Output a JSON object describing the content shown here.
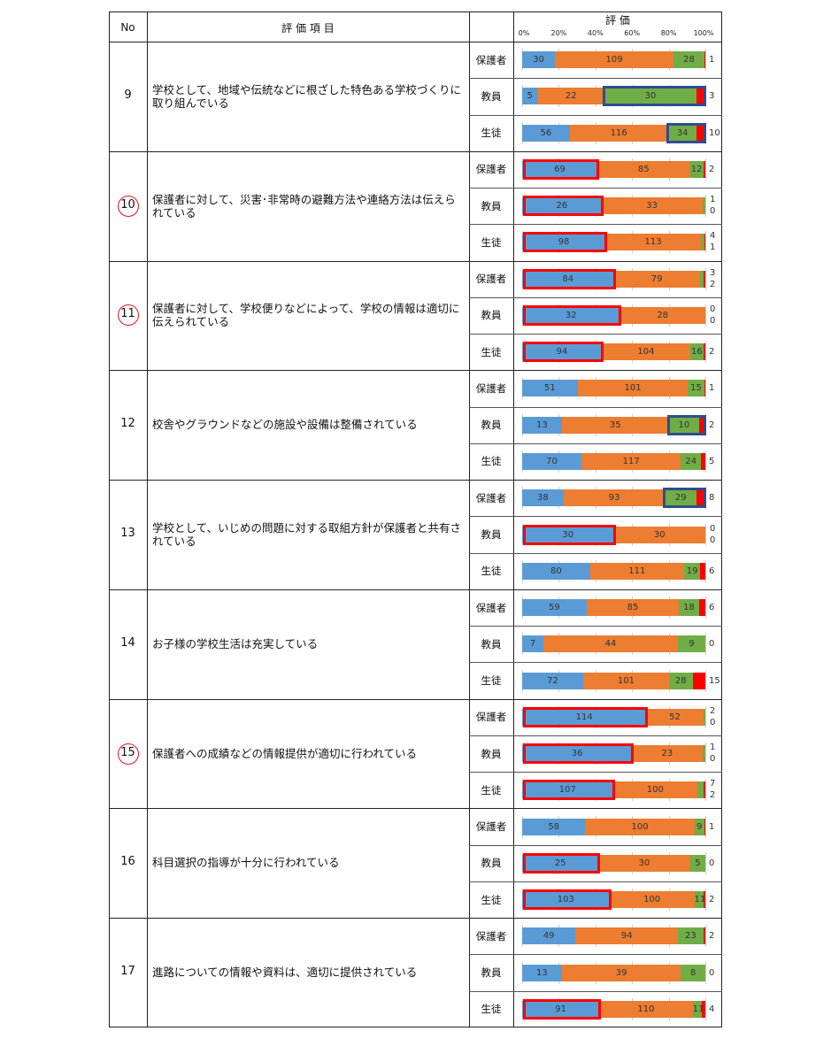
{
  "header": {
    "no": "No",
    "item": "評 価 項 目",
    "eval": "評 価",
    "ticks": [
      "0%",
      "20%",
      "40%",
      "60%",
      "80%",
      "100%"
    ]
  },
  "colors": {
    "blue": "#5b9bd5",
    "orange": "#ed7d31",
    "green": "#70ad47",
    "red": "#ff0000",
    "highlight_red": "#ff0000",
    "highlight_blue": "#2e4d8f"
  },
  "groups": [
    "保護者",
    "教員",
    "生徒"
  ],
  "rows": [
    {
      "no": "9",
      "circled": false,
      "item": "学校として、地域や伝統などに根ざした特色ある学校づくりに取り組んでいる",
      "bars": [
        {
          "values": [
            30,
            109,
            28,
            1
          ],
          "highlight": null
        },
        {
          "values": [
            5,
            22,
            30,
            3
          ],
          "highlight": "blue"
        },
        {
          "values": [
            56,
            116,
            34,
            10
          ],
          "highlight": "blue"
        }
      ]
    },
    {
      "no": "10",
      "circled": true,
      "item": "保護者に対して、災害･非常時の避難方法や連絡方法は伝えられている",
      "bars": [
        {
          "values": [
            69,
            85,
            12,
            2
          ],
          "highlight": "red"
        },
        {
          "values": [
            26,
            33,
            1,
            0
          ],
          "highlight": "red"
        },
        {
          "values": [
            98,
            113,
            4,
            1
          ],
          "highlight": "red"
        }
      ]
    },
    {
      "no": "11",
      "circled": true,
      "item": "保護者に対して、学校便りなどによって、学校の情報は適切に伝えられている",
      "bars": [
        {
          "values": [
            84,
            79,
            3,
            2
          ],
          "highlight": "red"
        },
        {
          "values": [
            32,
            28,
            0,
            0
          ],
          "highlight": "red"
        },
        {
          "values": [
            94,
            104,
            16,
            2
          ],
          "highlight": "red"
        }
      ]
    },
    {
      "no": "12",
      "circled": false,
      "item": "校舎やグラウンドなどの施設や設備は整備されている",
      "bars": [
        {
          "values": [
            51,
            101,
            15,
            1
          ],
          "highlight": null
        },
        {
          "values": [
            13,
            35,
            10,
            2
          ],
          "highlight": "blue"
        },
        {
          "values": [
            70,
            117,
            24,
            5
          ],
          "highlight": null
        }
      ]
    },
    {
      "no": "13",
      "circled": false,
      "item": "学校として、いじめの問題に対する取組方針が保護者と共有されている",
      "bars": [
        {
          "values": [
            38,
            93,
            29,
            8
          ],
          "highlight": "blue"
        },
        {
          "values": [
            30,
            30,
            0,
            0
          ],
          "highlight": "red"
        },
        {
          "values": [
            80,
            111,
            19,
            6
          ],
          "highlight": null
        }
      ]
    },
    {
      "no": "14",
      "circled": false,
      "item": "お子様の学校生活は充実している",
      "bars": [
        {
          "values": [
            59,
            85,
            18,
            6
          ],
          "highlight": null
        },
        {
          "values": [
            7,
            44,
            9,
            0
          ],
          "highlight": null
        },
        {
          "values": [
            72,
            101,
            28,
            15
          ],
          "highlight": null
        }
      ]
    },
    {
      "no": "15",
      "circled": true,
      "item": "保護者への成績などの情報提供が適切に行われている",
      "bars": [
        {
          "values": [
            114,
            52,
            2,
            0
          ],
          "highlight": "red"
        },
        {
          "values": [
            36,
            23,
            1,
            0
          ],
          "highlight": "red"
        },
        {
          "values": [
            107,
            100,
            7,
            2
          ],
          "highlight": "red"
        }
      ]
    },
    {
      "no": "16",
      "circled": false,
      "item": "科目選択の指導が十分に行われている",
      "bars": [
        {
          "values": [
            58,
            100,
            9,
            1
          ],
          "highlight": null
        },
        {
          "values": [
            25,
            30,
            5,
            0
          ],
          "highlight": "red"
        },
        {
          "values": [
            103,
            100,
            11,
            2
          ],
          "highlight": "red"
        }
      ]
    },
    {
      "no": "17",
      "circled": false,
      "item": "進路についての情報や資料は、適切に提供されている",
      "bars": [
        {
          "values": [
            49,
            94,
            23,
            2
          ],
          "highlight": null
        },
        {
          "values": [
            13,
            39,
            8,
            0
          ],
          "highlight": null
        },
        {
          "values": [
            91,
            110,
            11,
            4
          ],
          "highlight": "red"
        }
      ]
    }
  ]
}
